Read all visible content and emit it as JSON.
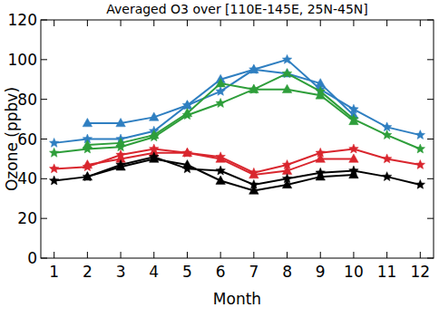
{
  "chart_data": {
    "type": "line",
    "title": "Averaged O3 over [110E-145E, 25N-45N]",
    "x_label": "Month",
    "y_label": "Ozone (ppbv)",
    "x": [
      1,
      2,
      3,
      4,
      5,
      6,
      7,
      8,
      9,
      10,
      11,
      12
    ],
    "xlim": [
      0.6,
      12.4
    ],
    "xticks": [
      1,
      2,
      3,
      4,
      5,
      6,
      7,
      8,
      9,
      10,
      11,
      12
    ],
    "ylim": [
      0,
      120
    ],
    "yticks": [
      0,
      20,
      40,
      60,
      80,
      100,
      120
    ],
    "grid": false,
    "series": [
      {
        "color": "#2f7fc1",
        "marker": "star",
        "values": [
          58,
          60,
          60,
          64,
          77,
          84,
          95,
          100,
          85,
          75,
          66,
          62
        ]
      },
      {
        "color": "#2f7fc1",
        "marker": "triangle",
        "values": [
          null,
          68,
          68,
          71,
          77,
          90,
          95,
          93,
          88,
          72,
          null,
          null
        ]
      },
      {
        "color": "#2e9e3a",
        "marker": "star",
        "values": [
          53,
          55,
          56,
          61,
          72,
          78,
          85,
          93,
          84,
          70,
          62,
          55
        ]
      },
      {
        "color": "#2e9e3a",
        "marker": "triangle",
        "values": [
          null,
          57,
          58,
          62,
          73,
          88,
          85,
          85,
          82,
          69,
          null,
          null
        ]
      },
      {
        "color": "#d9262e",
        "marker": "star",
        "values": [
          45,
          46,
          52,
          55,
          53,
          51,
          43,
          47,
          53,
          55,
          50,
          47
        ]
      },
      {
        "color": "#d9262e",
        "marker": "triangle",
        "values": [
          null,
          47,
          50,
          53,
          53,
          50,
          42,
          44,
          50,
          50,
          null,
          null
        ]
      },
      {
        "color": "#000000",
        "marker": "star",
        "values": [
          39,
          41,
          47,
          51,
          45,
          44,
          37,
          40,
          43,
          44,
          41,
          37
        ]
      },
      {
        "color": "#000000",
        "marker": "triangle",
        "values": [
          null,
          41,
          46,
          50,
          47,
          39,
          34,
          37,
          41,
          42,
          null,
          null
        ]
      }
    ]
  }
}
